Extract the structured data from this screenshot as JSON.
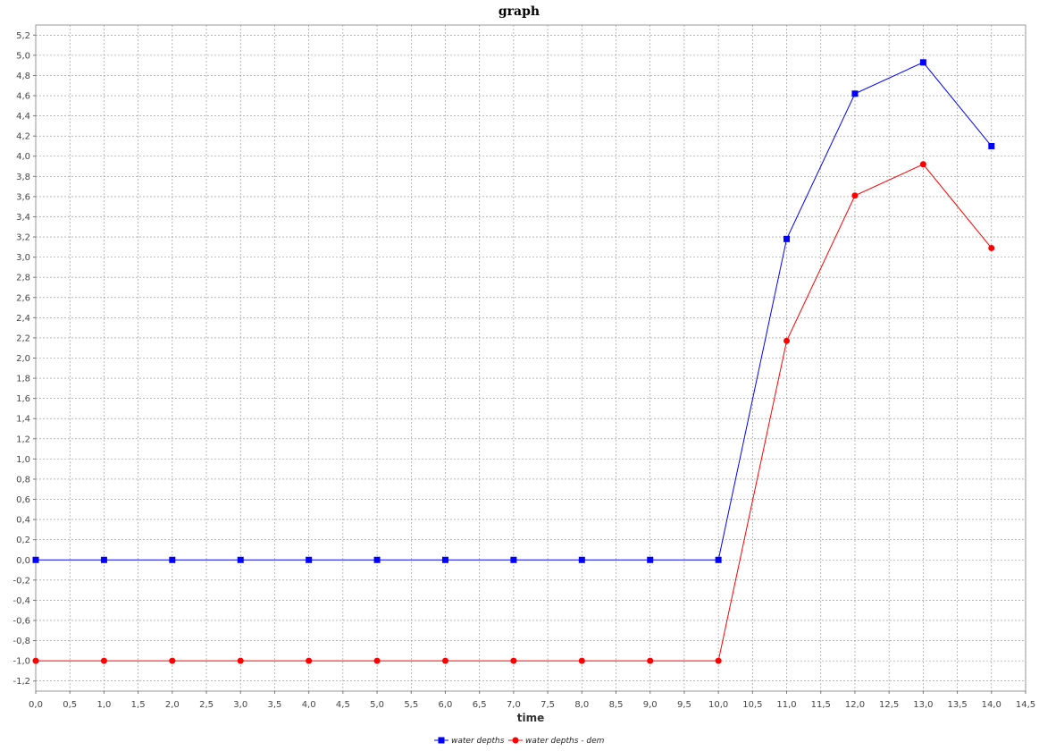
{
  "chart_data": {
    "type": "line",
    "title": "graph",
    "xlabel": "time",
    "ylabel": "",
    "xlim": [
      0,
      14.5
    ],
    "ylim": [
      -1.3,
      5.3
    ],
    "x_ticks": [
      "0,0",
      "0,5",
      "1,0",
      "1,5",
      "2,0",
      "2,5",
      "3,0",
      "3,5",
      "4,0",
      "4,5",
      "5,0",
      "5,5",
      "6,0",
      "6,5",
      "7,0",
      "7,5",
      "8,0",
      "8,5",
      "9,0",
      "9,5",
      "10,0",
      "10,5",
      "11,0",
      "11,5",
      "12,0",
      "12,5",
      "13,0",
      "13,5",
      "14,0",
      "14,5"
    ],
    "y_ticks": [
      "-1,2",
      "-1,0",
      "-0,8",
      "-0,6",
      "-0,4",
      "-0,2",
      "0,0",
      "0,2",
      "0,4",
      "0,6",
      "0,8",
      "1,0",
      "1,2",
      "1,4",
      "1,6",
      "1,8",
      "2,0",
      "2,2",
      "2,4",
      "2,6",
      "2,8",
      "3,0",
      "3,2",
      "3,4",
      "3,6",
      "3,8",
      "4,0",
      "4,2",
      "4,4",
      "4,6",
      "4,8",
      "5,0",
      "5,2"
    ],
    "grid": true,
    "legend_position": "bottom",
    "x": [
      0,
      1,
      2,
      3,
      4,
      5,
      6,
      7,
      8,
      9,
      10,
      11,
      12,
      13,
      14
    ],
    "series": [
      {
        "name": "water depths",
        "color": "#0000ff",
        "marker": "square",
        "values": [
          0,
          0,
          0,
          0,
          0,
          0,
          0,
          0,
          0,
          0,
          0,
          3.18,
          4.62,
          4.93,
          4.1
        ]
      },
      {
        "name": "water depths - dem",
        "color": "#ff0000",
        "marker": "circle",
        "values": [
          -1,
          -1,
          -1,
          -1,
          -1,
          -1,
          -1,
          -1,
          -1,
          -1,
          -1,
          2.17,
          3.61,
          3.92,
          3.09
        ]
      }
    ]
  }
}
